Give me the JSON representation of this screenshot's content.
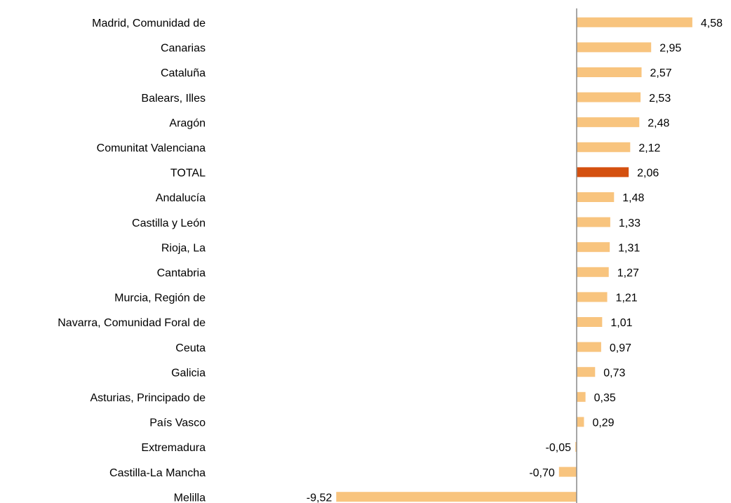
{
  "chart_data": {
    "type": "bar",
    "orientation": "horizontal",
    "categories": [
      "Madrid, Comunidad de",
      "Canarias",
      "Cataluña",
      "Balears, Illes",
      "Aragón",
      "Comunitat Valenciana",
      "TOTAL",
      "Andalucía",
      "Castilla y León",
      "Rioja, La",
      "Cantabria",
      "Murcia, Región de",
      "Navarra, Comunidad Foral de",
      "Ceuta",
      "Galicia",
      "Asturias, Principado de",
      "País Vasco",
      "Extremadura",
      "Castilla-La Mancha",
      "Melilla"
    ],
    "values": [
      4.58,
      2.95,
      2.57,
      2.53,
      2.48,
      2.12,
      2.06,
      1.48,
      1.33,
      1.31,
      1.27,
      1.21,
      1.01,
      0.97,
      0.73,
      0.35,
      0.29,
      -0.05,
      -0.7,
      -9.52
    ],
    "value_labels": [
      "4,58",
      "2,95",
      "2,57",
      "2,53",
      "2,48",
      "2,12",
      "2,06",
      "1,48",
      "1,33",
      "1,31",
      "1,27",
      "1,21",
      "1,01",
      "0,97",
      "0,73",
      "0,35",
      "0,29",
      "-0,05",
      "-0,70",
      "-9,52"
    ],
    "colors": [
      "#f8c47e",
      "#f8c47e",
      "#f8c47e",
      "#f8c47e",
      "#f8c47e",
      "#f8c47e",
      "#d4500f",
      "#f8c47e",
      "#f8c47e",
      "#f8c47e",
      "#f8c47e",
      "#f8c47e",
      "#f8c47e",
      "#f8c47e",
      "#f8c47e",
      "#f8c47e",
      "#f8c47e",
      "#f8c47e",
      "#f8c47e",
      "#f8c47e"
    ],
    "xlim": [
      -10,
      6
    ]
  }
}
